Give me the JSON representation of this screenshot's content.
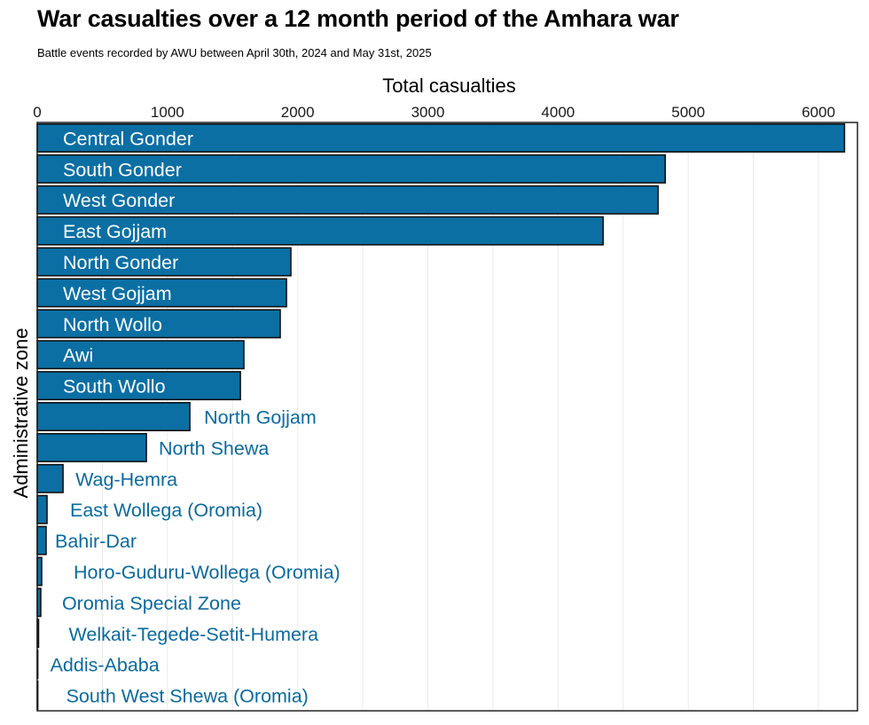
{
  "title": "War casualties over a 12 month period of the Amhara war",
  "subtitle": "Battle events recorded by AWU between April 30th, 2024 and May 31st, 2025",
  "chart_data": {
    "type": "bar",
    "orientation": "horizontal",
    "title": "War casualties over a 12 month period of the Amhara war",
    "subtitle": "Battle events recorded by AWU between April 30th, 2024 and May 31st, 2025",
    "xlabel": "Total casualties",
    "ylabel": "Administrative zone",
    "x_axis_position": "top",
    "xlim": [
      0,
      6370
    ],
    "xticks": [
      0,
      1000,
      2000,
      3000,
      4000,
      5000,
      6000
    ],
    "xtick_labels": [
      "0",
      "1000",
      "2000",
      "3000",
      "4000",
      "5000",
      "6000"
    ],
    "grid": true,
    "legend": "none",
    "colors": {
      "bar_fill": "#0b6fa4",
      "bar_edge": "#111111",
      "label_inside": "#ffffff",
      "label_outside": "#0b6a9f"
    },
    "categories": [
      "Central Gonder",
      "South Gonder",
      "West Gonder",
      "East Gojjam",
      "North Gonder",
      "West Gojjam",
      "North Wollo",
      "Awi",
      "South Wollo",
      "North Gojjam",
      "North Shewa",
      "Wag-Hemra",
      "East Wollega (Oromia)",
      "Bahir-Dar",
      "Horo-Guduru-Wollega (Oromia)",
      "Oromia Special Zone",
      "Welkait-Tegede-Setit-Humera",
      "Addis-Ababa",
      "South West Shewa (Oromia)"
    ],
    "values": [
      6200,
      4823,
      4768,
      4346,
      1948,
      1914,
      1866,
      1587,
      1560,
      1172,
      838,
      198,
      75,
      68,
      34,
      27,
      10,
      2,
      1
    ]
  }
}
